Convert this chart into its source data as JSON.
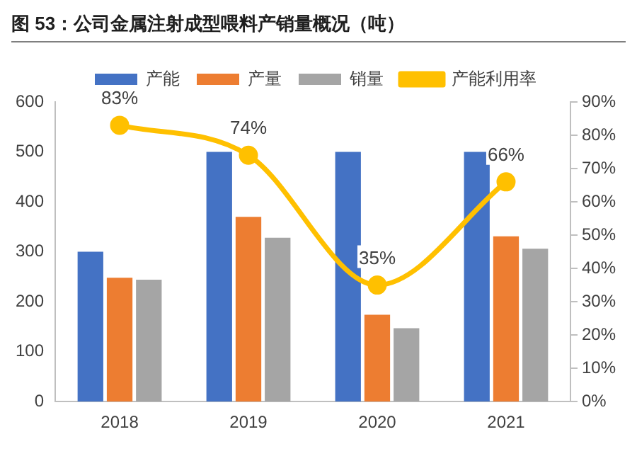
{
  "chart_data": {
    "type": "bar",
    "title": "图 53：公司金属注射成型喂料产销量概况（吨）",
    "categories": [
      "2018",
      "2019",
      "2020",
      "2021"
    ],
    "series": [
      {
        "name": "产能",
        "color": "#4472c4",
        "values": [
          300,
          500,
          500,
          500
        ]
      },
      {
        "name": "产量",
        "color": "#ed7d31",
        "values": [
          248,
          370,
          174,
          331
        ]
      },
      {
        "name": "销量",
        "color": "#a5a5a5",
        "values": [
          244,
          328,
          147,
          306
        ]
      },
      {
        "name": "产能利用率",
        "type": "line",
        "axis": "y2",
        "color": "#ffc000",
        "marker": "circle",
        "values": [
          83,
          74,
          35,
          66
        ],
        "value_labels": [
          "83%",
          "74%",
          "35%",
          "66%"
        ]
      }
    ],
    "ylim": [
      0,
      600
    ],
    "yticks": [
      0,
      100,
      200,
      300,
      400,
      500,
      600
    ],
    "y2lim": [
      0,
      90
    ],
    "y2ticks": [
      {
        "value": 0,
        "label": "0%"
      },
      {
        "value": 10,
        "label": "10%"
      },
      {
        "value": 20,
        "label": "20%"
      },
      {
        "value": 30,
        "label": "30%"
      },
      {
        "value": 40,
        "label": "40%"
      },
      {
        "value": 50,
        "label": "50%"
      },
      {
        "value": 60,
        "label": "60%"
      },
      {
        "value": 70,
        "label": "70%"
      },
      {
        "value": 80,
        "label": "80%"
      },
      {
        "value": 90,
        "label": "90%"
      }
    ],
    "grid": false,
    "legend": "top"
  }
}
